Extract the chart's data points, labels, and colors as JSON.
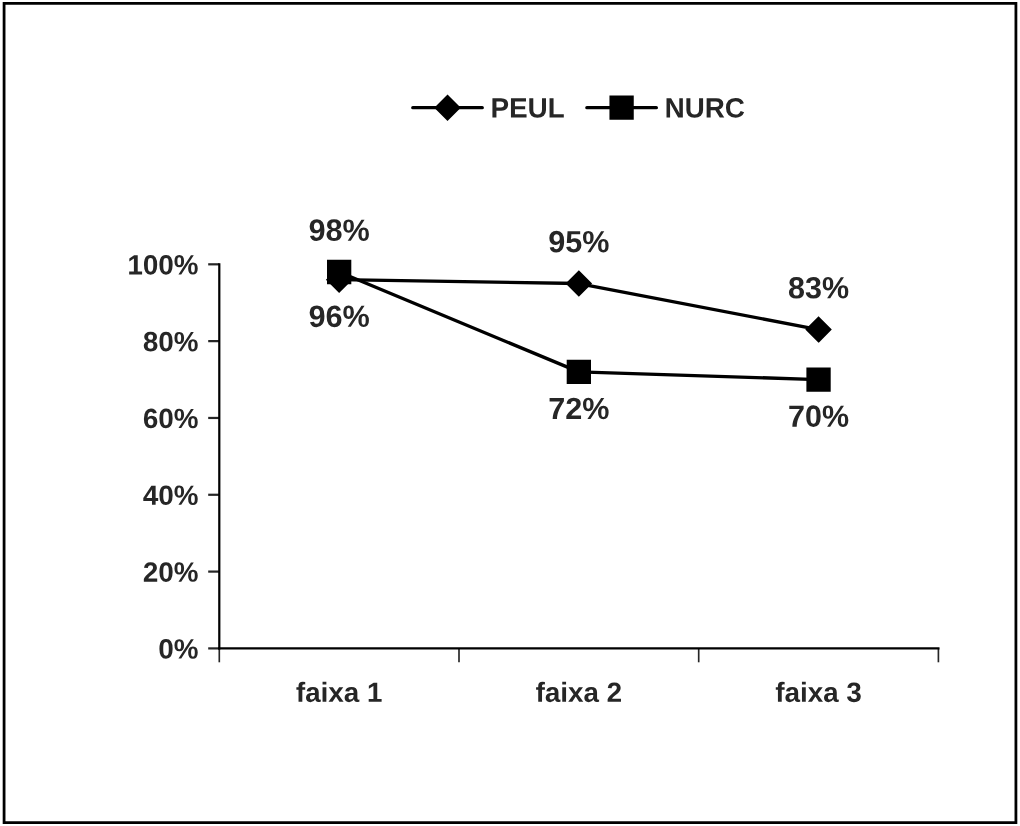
{
  "chart_data": {
    "type": "line",
    "categories": [
      "faixa 1",
      "faixa 2",
      "faixa 3"
    ],
    "series": [
      {
        "name": "PEUL",
        "color": "#000000",
        "marker": "diamond",
        "values": [
          96,
          95,
          83
        ],
        "value_labels": [
          "96%",
          "95%",
          "83%"
        ]
      },
      {
        "name": "NURC",
        "color": "#000000",
        "marker": "square",
        "values": [
          98,
          72,
          70
        ],
        "value_labels": [
          "98%",
          "72%",
          "70%"
        ]
      }
    ],
    "ylim": [
      0,
      100
    ],
    "yticks": [
      {
        "value": 0,
        "label": "0%"
      },
      {
        "value": 20,
        "label": "20%"
      },
      {
        "value": 40,
        "label": "40%"
      },
      {
        "value": 60,
        "label": "60%"
      },
      {
        "value": 80,
        "label": "80%"
      },
      {
        "value": 100,
        "label": "100%"
      }
    ],
    "grid": false,
    "legend": "top"
  }
}
